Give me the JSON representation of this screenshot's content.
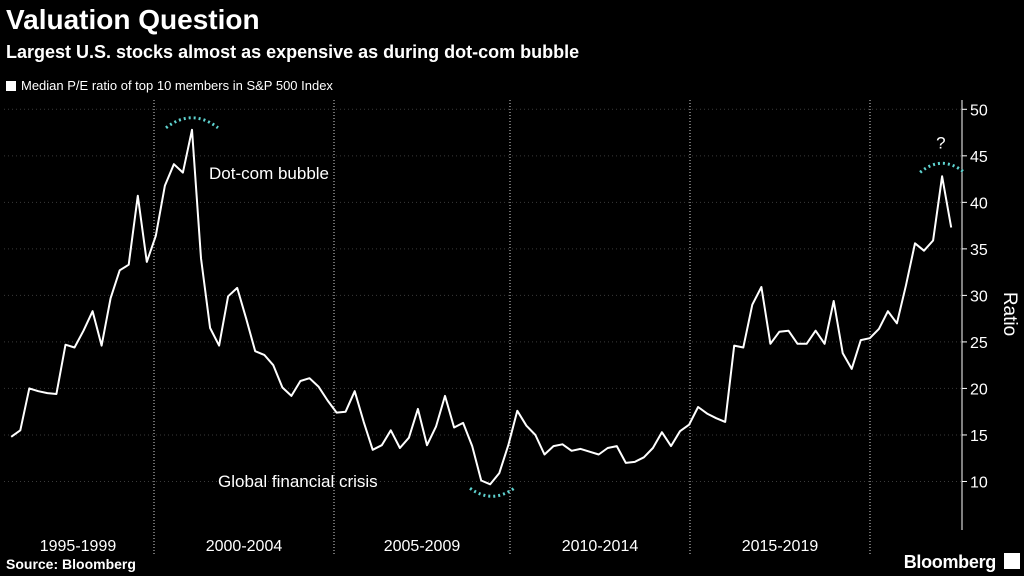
{
  "header": {
    "title": "Valuation Question",
    "subtitle": "Largest U.S. stocks almost as expensive as during dot-com bubble"
  },
  "footer": {
    "source": "Source: Bloomberg",
    "brand": "Bloomberg"
  },
  "colors": {
    "background": "#000000",
    "line": "#ffffff",
    "highlight_arc": "#5fd3d0",
    "grid": "#3a3a3a"
  },
  "chart_data": {
    "type": "line",
    "legend": "Median P/E ratio of top 10 members in S&P 500 Index",
    "legend_position": "top-left",
    "ylabel": "Ratio",
    "y_axis_side": "right",
    "ylim": [
      5,
      51
    ],
    "yticks": [
      10,
      15,
      20,
      25,
      30,
      35,
      40,
      45,
      50
    ],
    "grid": true,
    "x_period_labels": [
      "1995-1999",
      "2000-2004",
      "2005-2009",
      "2010-2014",
      "2015-2019"
    ],
    "x_range": [
      1995.0,
      2020.0
    ],
    "series": [
      {
        "name": "Median P/E ratio of top 10 members in S&P 500 Index",
        "x": [
          1995.0,
          1995.25,
          1995.5,
          1995.75,
          1996.0,
          1996.25,
          1996.5,
          1996.75,
          1997.0,
          1997.25,
          1997.5,
          1997.75,
          1998.0,
          1998.25,
          1998.5,
          1998.75,
          1999.0,
          1999.25,
          1999.5,
          1999.75,
          2000.0,
          2000.25,
          2000.5,
          2000.75,
          2001.0,
          2001.25,
          2001.5,
          2001.75,
          2002.0,
          2002.25,
          2002.5,
          2002.75,
          2003.0,
          2003.25,
          2003.5,
          2003.75,
          2004.0,
          2004.25,
          2004.5,
          2004.75,
          2005.0,
          2005.25,
          2005.5,
          2005.75,
          2006.0,
          2006.25,
          2006.5,
          2006.75,
          2007.0,
          2007.25,
          2007.5,
          2007.75,
          2008.0,
          2008.25,
          2008.5,
          2008.75,
          2009.0,
          2009.25,
          2009.5,
          2009.75,
          2010.0,
          2010.25,
          2010.5,
          2010.75,
          2011.0,
          2011.25,
          2011.5,
          2011.75,
          2012.0,
          2012.25,
          2012.5,
          2012.75,
          2013.0,
          2013.25,
          2013.5,
          2013.75,
          2014.0,
          2014.25,
          2014.5,
          2014.75,
          2015.0,
          2015.25,
          2015.5,
          2015.75,
          2016.0,
          2016.25,
          2016.5,
          2016.75,
          2017.0,
          2017.25,
          2017.5,
          2017.75,
          2018.0,
          2018.25,
          2018.5,
          2018.75,
          2019.0,
          2019.25,
          2019.5,
          2019.75,
          2020.0
        ],
        "values": [
          14.8,
          15.5,
          20.0,
          19.7,
          19.5,
          19.4,
          24.7,
          24.4,
          26.2,
          28.3,
          24.6,
          29.7,
          32.7,
          33.3,
          40.7,
          33.6,
          36.4,
          41.8,
          44.1,
          43.2,
          47.8,
          34.0,
          26.5,
          24.6,
          29.9,
          30.8,
          27.5,
          24.0,
          23.6,
          22.5,
          20.1,
          19.2,
          20.8,
          21.1,
          20.2,
          18.7,
          17.4,
          17.5,
          19.7,
          16.4,
          13.4,
          13.9,
          15.5,
          13.6,
          14.7,
          17.8,
          13.9,
          15.9,
          19.2,
          15.8,
          16.3,
          13.8,
          10.1,
          9.7,
          10.9,
          13.9,
          17.6,
          16.0,
          15.0,
          12.9,
          13.8,
          14.0,
          13.3,
          13.5,
          13.2,
          12.9,
          13.6,
          13.8,
          12.0,
          12.1,
          12.6,
          13.6,
          15.3,
          13.8,
          15.4,
          16.1,
          18.0,
          17.3,
          16.8,
          16.4,
          24.6,
          24.4,
          29.0,
          30.9,
          24.8,
          26.1,
          26.2,
          24.8,
          24.8,
          26.2,
          24.8,
          29.4,
          23.8,
          22.1,
          25.2,
          25.4,
          26.4,
          28.3,
          27.0,
          31.1,
          35.6
        ]
      },
      {
        "name": "",
        "x": [
          2020.0,
          2020.25,
          2020.5,
          2020.75,
          2021.0
        ],
        "values": [
          35.6,
          34.8,
          35.9,
          42.8,
          37.3
        ]
      }
    ],
    "annotations": [
      {
        "text": "Dot-com bubble",
        "x": 2000.0,
        "y": 47.8
      },
      {
        "text": "Global financial crisis",
        "x": 2008.25,
        "y": 9.7
      },
      {
        "text": "?",
        "x": 2020.75,
        "y": 42.8
      }
    ]
  }
}
